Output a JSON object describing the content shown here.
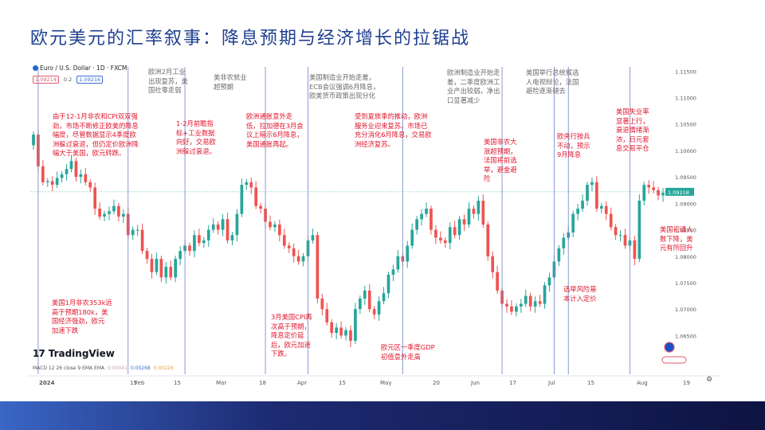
{
  "title": "欧元美元的汇率叙事：降息预期与经济增长的拉锯战",
  "header": {
    "pair": "Euro / U.S. Dollar · 1D · FXCM",
    "bid": "1.09214",
    "spread": "0.2",
    "ask": "1.09216"
  },
  "logo_text": "TradingView",
  "macd": {
    "label": "MACD 12 26 close 9 EMA EMA",
    "v1": "0.00041",
    "v2": "0.00268",
    "v3": "0.00226"
  },
  "icons": {
    "settings": "gear-icon",
    "flag": "eu-us-flag-icon"
  },
  "colors": {
    "up": "#26a69a",
    "down": "#ef5350",
    "accent_blue": "#2962ff",
    "annotation_red": "#e0162c"
  },
  "annotations": {
    "a1": "由于12-1月非农和CPI双双强\n劲，市场不断修正欧美的降息\n幅度，尽管数据显示4季度欧\n洲躲过衰退，但仍定价欧洲降\n幅大于美国，欧元转跌。",
    "a2": "美国1月非农353k远\n高于预期180k，美\n国经济强劲，欧元\n加速下跌",
    "a3": "欧洲2月工业\n出现复苏，美\n国社零走弱",
    "a4": "1-2月前瞻指\n标+工业数据\n向好，交易欧\n洲躲过衰退。",
    "a5": "美非农就业\n超预期",
    "a6": "欧洲通胀意外走\n低，拉加德在3月会\n议上暗示6月降息，\n美国通胀再起。",
    "a7": "3月美国CPI再\n次高于预期，\n降息定价延\n后，欧元加速\n下跌。",
    "a8": "美国制造业开始走差，\nECB会议强调6月降息，\n欧美货币政策出现分化",
    "a9": "受到夏旅季的推动，欧洲\n服务业迎来复苏。市场已\n充分消化6月降息，交易欧\n洲经济复苏。",
    "a10": "欧元区一季度GDP\n初值意外走高",
    "a11": "欧洲制造业开始走\n差，二季度欧洲工\n业产出较弱，净出\n口显著减少",
    "a12": "美国非农大\n涨超预期，\n法国将前选\n举，避金避\n险",
    "a13": "美国举行总统候选\n人电视辩论，法国\n避险逐渐褪去",
    "a14": "选举风险基\n本计入定价",
    "a15": "欧央行按兵\n不动，预示\n9月降息",
    "a16": "美国失业率\n显著上行，\n衰退情绪渐\n浓，日元套\n息交易平仓",
    "a17": "美国初请人\n数下降，美\n元有所回升"
  },
  "chart_data": {
    "type": "candlestick",
    "title": "Euro / U.S. Dollar · 1D · FXCM",
    "ylim": [
      1.0625,
      1.1155
    ],
    "y_ticks": [
      "1.11500",
      "1.11000",
      "1.10500",
      "1.10000",
      "1.09500",
      "1.09000",
      "1.08500",
      "1.08000",
      "1.07500",
      "1.07000",
      "1.06500"
    ],
    "x_labels": [
      "2024",
      "15",
      "Feb",
      "15",
      "Mar",
      "18",
      "Apr",
      "15",
      "May",
      "20",
      "Jun",
      "17",
      "Jul",
      "15",
      "Aug",
      "19"
    ],
    "current_price": "1.09218",
    "macd": {
      "signal_line": 0.00041,
      "macd_line": 0.00268,
      "histogram": 0.00226
    },
    "closes": [
      1.103,
      1.097,
      1.094,
      1.0942,
      1.0935,
      1.0948,
      1.0955,
      1.0965,
      1.098,
      1.095,
      1.0955,
      1.094,
      1.093,
      1.089,
      1.0875,
      1.088,
      1.0885,
      1.0895,
      1.0875,
      1.088,
      1.084,
      1.085,
      1.085,
      1.081,
      1.0795,
      1.077,
      1.0795,
      1.076,
      1.078,
      1.076,
      1.0795,
      1.081,
      1.082,
      1.081,
      1.084,
      1.0825,
      1.083,
      1.085,
      1.086,
      1.085,
      1.087,
      1.083,
      1.084,
      1.088,
      1.0935,
      1.094,
      1.093,
      1.0895,
      1.089,
      1.0865,
      1.0855,
      1.086,
      1.084,
      1.082,
      1.0815,
      1.08,
      1.079,
      1.08,
      1.083,
      1.084,
      1.072,
      1.07,
      1.0675,
      1.0655,
      1.0665,
      1.065,
      1.066,
      1.064,
      1.07,
      1.072,
      1.0735,
      1.07,
      1.069,
      1.0715,
      1.073,
      1.0765,
      1.0775,
      1.08,
      1.079,
      1.082,
      1.085,
      1.087,
      1.088,
      1.089,
      1.085,
      1.0835,
      1.083,
      1.0825,
      1.0855,
      1.084,
      1.087,
      1.086,
      1.089,
      1.088,
      1.0905,
      1.086,
      1.08,
      1.077,
      1.0735,
      1.071,
      1.0705,
      1.0695,
      1.0705,
      1.071,
      1.0725,
      1.0705,
      1.0715,
      1.071,
      1.0745,
      1.076,
      1.079,
      1.0815,
      1.0835,
      1.0845,
      1.088,
      1.089,
      1.0905,
      1.0935,
      1.094,
      1.089,
      1.0895,
      1.088,
      1.0855,
      1.084,
      1.084,
      1.082,
      1.083,
      1.0795,
      1.0905,
      1.0935,
      1.093,
      1.0925,
      1.0915,
      1.092
    ],
    "annotated_events": [
      "US Jan NFP 353k vs 180k",
      "US Mar CPI above forecast",
      "Euro-area Q1 GDP beat",
      "ECB hold, signals Sept cut",
      "US unemployment jump"
    ]
  }
}
